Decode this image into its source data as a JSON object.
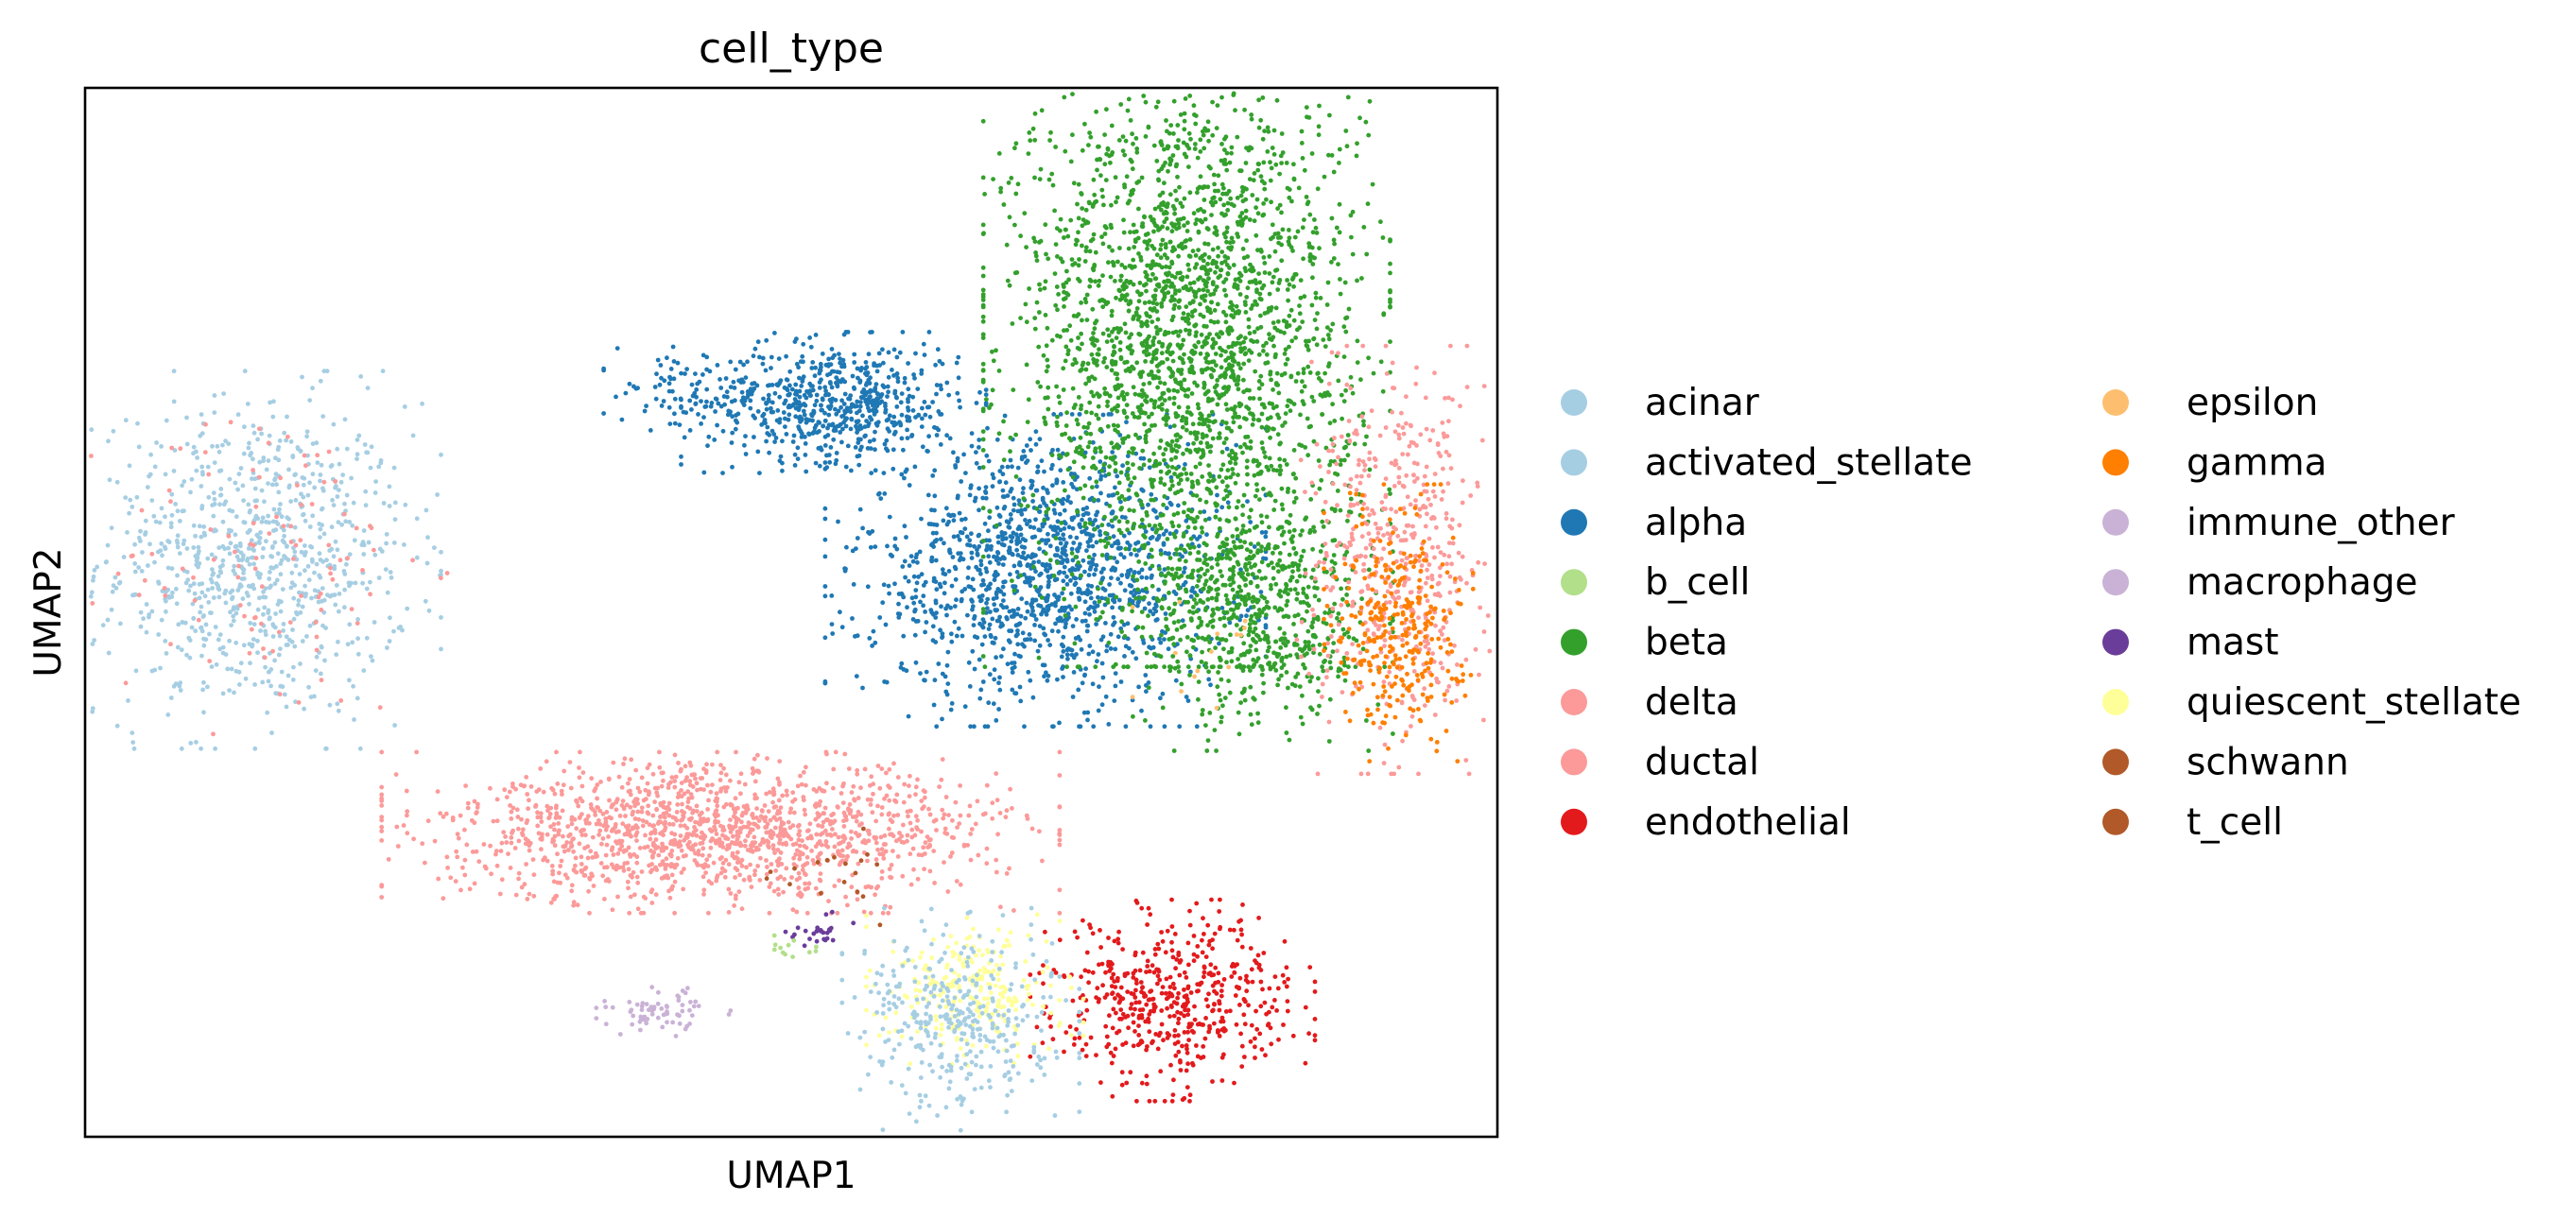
{
  "chart_data": {
    "type": "scatter",
    "title": "cell_type",
    "xlabel": "UMAP1",
    "ylabel": "UMAP2",
    "xlim": [
      0,
      10
    ],
    "ylim": [
      0,
      10
    ],
    "xticks": [],
    "yticks": [],
    "grid": false,
    "legend_placement": "right, outside plot, two columns",
    "legend": [
      {
        "name": "acinar",
        "color": "#a6cee3"
      },
      {
        "name": "activated_stellate",
        "color": "#a6cee3"
      },
      {
        "name": "alpha",
        "color": "#1f78b4"
      },
      {
        "name": "b_cell",
        "color": "#b2df8a"
      },
      {
        "name": "beta",
        "color": "#33a02c"
      },
      {
        "name": "delta",
        "color": "#fb9a99"
      },
      {
        "name": "ductal",
        "color": "#fb9a99"
      },
      {
        "name": "endothelial",
        "color": "#e31a1c"
      },
      {
        "name": "epsilon",
        "color": "#fdbf6f"
      },
      {
        "name": "gamma",
        "color": "#ff7f00"
      },
      {
        "name": "immune_other",
        "color": "#cab2d6"
      },
      {
        "name": "macrophage",
        "color": "#cab2d6"
      },
      {
        "name": "mast",
        "color": "#6a3d9a"
      },
      {
        "name": "quiescent_stellate",
        "color": "#ffff99"
      },
      {
        "name": "schwann",
        "color": "#b15928"
      },
      {
        "name": "t_cell",
        "color": "#b15928"
      }
    ],
    "clusters": [
      {
        "cell_type": "acinar",
        "color": "#a6cee3",
        "center": [
          1.2,
          5.5
        ],
        "spread": [
          0.55,
          0.75
        ],
        "n": 900
      },
      {
        "cell_type": "ductal",
        "color": "#fb9a99",
        "center": [
          1.3,
          5.5
        ],
        "spread": [
          0.55,
          0.75
        ],
        "n": 110
      },
      {
        "cell_type": "alpha",
        "color": "#1f78b4",
        "center": [
          5.3,
          7.0
        ],
        "spread": [
          0.45,
          0.28
        ],
        "n": 650
      },
      {
        "cell_type": "alpha",
        "color": "#1f78b4",
        "center": [
          6.8,
          5.4
        ],
        "spread": [
          0.65,
          0.62
        ],
        "n": 1400
      },
      {
        "cell_type": "alpha",
        "color": "#1f78b4",
        "center": [
          4.2,
          7.1
        ],
        "spread": [
          0.22,
          0.18
        ],
        "n": 70
      },
      {
        "cell_type": "beta",
        "color": "#33a02c",
        "center": [
          7.8,
          7.6
        ],
        "spread": [
          0.6,
          1.3
        ],
        "n": 2600
      },
      {
        "cell_type": "beta",
        "color": "#33a02c",
        "center": [
          8.3,
          5.0
        ],
        "spread": [
          0.4,
          0.55
        ],
        "n": 650
      },
      {
        "cell_type": "delta",
        "color": "#fb9a99",
        "center": [
          9.3,
          5.5
        ],
        "spread": [
          0.3,
          0.85
        ],
        "n": 520
      },
      {
        "cell_type": "gamma",
        "color": "#ff7f00",
        "center": [
          9.3,
          4.9
        ],
        "spread": [
          0.22,
          0.55
        ],
        "n": 320
      },
      {
        "cell_type": "ductal",
        "color": "#fb9a99",
        "center": [
          4.5,
          2.9
        ],
        "spread": [
          1.0,
          0.32
        ],
        "n": 1500
      },
      {
        "cell_type": "endothelial",
        "color": "#e31a1c",
        "center": [
          7.7,
          1.3
        ],
        "spread": [
          0.42,
          0.4
        ],
        "n": 520
      },
      {
        "cell_type": "quiescent_stellate",
        "color": "#ffff99",
        "center": [
          6.3,
          1.4
        ],
        "spread": [
          0.32,
          0.3
        ],
        "n": 260
      },
      {
        "cell_type": "activated_stellate",
        "color": "#a6cee3",
        "center": [
          6.2,
          1.1
        ],
        "spread": [
          0.35,
          0.45
        ],
        "n": 360
      },
      {
        "cell_type": "macrophage",
        "color": "#cab2d6",
        "center": [
          4.1,
          1.2
        ],
        "spread": [
          0.2,
          0.1
        ],
        "n": 70
      },
      {
        "cell_type": "mast",
        "color": "#6a3d9a",
        "center": [
          5.2,
          1.95
        ],
        "spread": [
          0.1,
          0.08
        ],
        "n": 25
      },
      {
        "cell_type": "b_cell",
        "color": "#b2df8a",
        "center": [
          5.0,
          1.8
        ],
        "spread": [
          0.1,
          0.06
        ],
        "n": 12
      },
      {
        "cell_type": "schwann",
        "color": "#b15928",
        "center": [
          5.3,
          2.5
        ],
        "spread": [
          0.25,
          0.2
        ],
        "n": 18
      },
      {
        "cell_type": "epsilon",
        "color": "#fdbf6f",
        "center": [
          8.0,
          4.6
        ],
        "spread": [
          0.3,
          0.3
        ],
        "n": 15
      }
    ]
  }
}
